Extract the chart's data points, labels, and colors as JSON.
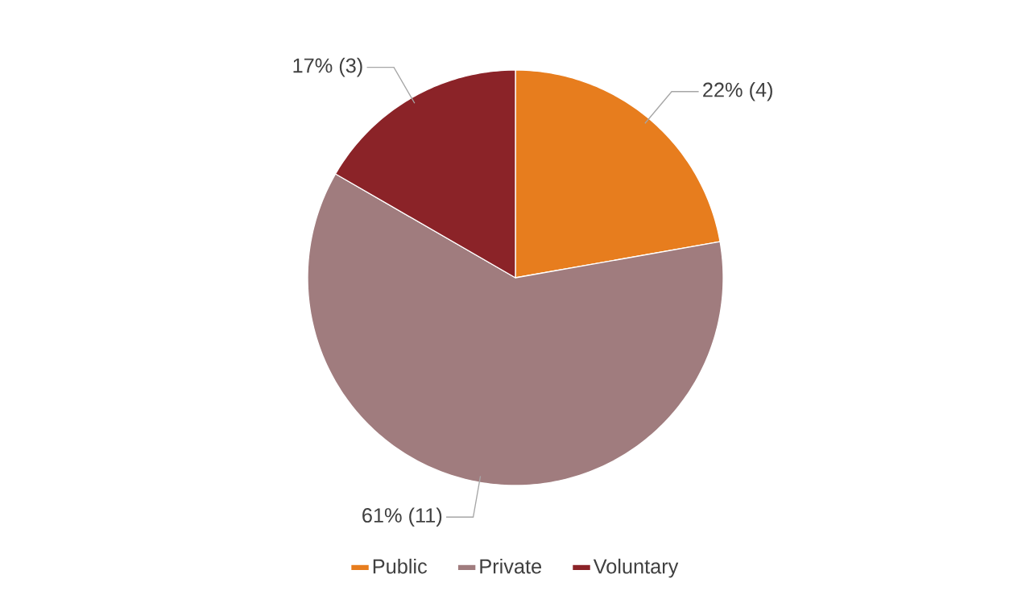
{
  "chart_data": {
    "type": "pie",
    "categories": [
      "Public",
      "Private",
      "Voluntary"
    ],
    "values": [
      4,
      11,
      3
    ],
    "colors": [
      "#e77d1e",
      "#a07c7e",
      "#8b2328"
    ],
    "value_labels": [
      "22% (4)",
      "61% (11)",
      "17% (3)"
    ],
    "legend": "bottom"
  }
}
